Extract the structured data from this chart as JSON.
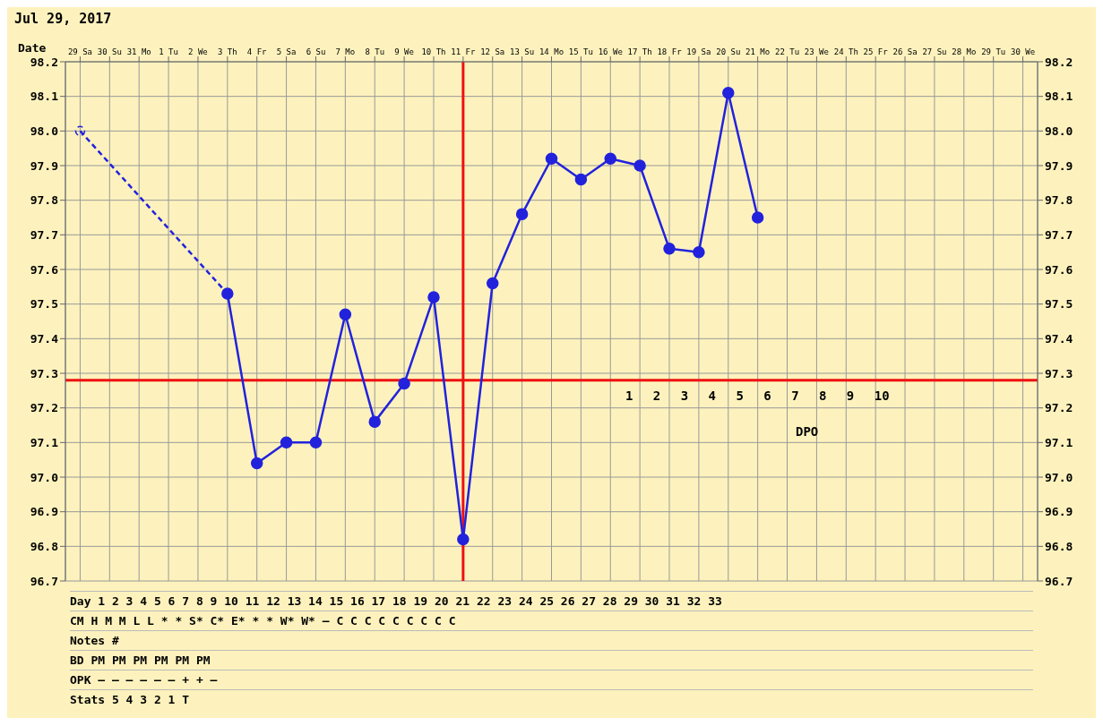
{
  "chart_data": {
    "type": "line",
    "title": "Jul 29, 2017",
    "xlabel": "Date",
    "categories": [
      "29 Sa",
      "30 Su",
      "31 Mo",
      "1 Tu",
      "2 We",
      "3 Th",
      "4 Fr",
      "5 Sa",
      "6 Su",
      "7 Mo",
      "8 Tu",
      "9 We",
      "10 Th",
      "11 Fr",
      "12 Sa",
      "13 Su",
      "14 Mo",
      "15 Tu",
      "16 We",
      "17 Th",
      "18 Fr",
      "19 Sa",
      "20 Su",
      "21 Mo",
      "22 Tu",
      "23 We",
      "24 Th",
      "25 Fr",
      "26 Sa",
      "27 Su",
      "28 Mo",
      "29 Tu",
      "30 We"
    ],
    "series": [
      {
        "color": "#2222dd",
        "line_style": "dashed",
        "marker": "circle",
        "values": [
          98.0,
          null,
          null,
          null,
          null,
          97.53,
          null,
          null,
          null,
          null,
          null,
          null,
          null,
          null,
          null,
          null,
          null,
          null,
          null,
          null,
          null,
          null,
          null,
          null,
          null,
          null,
          null,
          null,
          null,
          null,
          null,
          null,
          null
        ]
      },
      {
        "color": "#2222dd",
        "line_style": "solid",
        "marker": "circle",
        "values": [
          null,
          null,
          null,
          null,
          null,
          97.53,
          97.04,
          97.1,
          97.1,
          97.47,
          97.16,
          97.27,
          97.52,
          96.82,
          97.56,
          97.76,
          97.92,
          97.86,
          97.92,
          97.9,
          97.66,
          97.65,
          98.11,
          97.75,
          null,
          null,
          null,
          null,
          null,
          null,
          null,
          null,
          null
        ]
      }
    ],
    "ylim": [
      96.7,
      98.2
    ],
    "yticks": [
      {
        "value": 96.7,
        "label": "96.7"
      },
      {
        "value": 96.8,
        "label": "96.8"
      },
      {
        "value": 96.9,
        "label": "96.9"
      },
      {
        "value": 97.0,
        "label": "97.0"
      },
      {
        "value": 97.1,
        "label": "97.1"
      },
      {
        "value": 97.2,
        "label": "97.2"
      },
      {
        "value": 97.3,
        "label": "97.3"
      },
      {
        "value": 97.4,
        "label": "97.4"
      },
      {
        "value": 97.5,
        "label": "97.5"
      },
      {
        "value": 97.6,
        "label": "97.6"
      },
      {
        "value": 97.7,
        "label": "97.7"
      },
      {
        "value": 97.8,
        "label": "97.8"
      },
      {
        "value": 97.9,
        "label": "97.9"
      },
      {
        "value": 98.0,
        "label": "98.0"
      },
      {
        "value": 98.1,
        "label": "98.1"
      },
      {
        "value": 98.2,
        "label": "98.2"
      }
    ],
    "y2lim": [
      96.7,
      98.2
    ],
    "y2ticks": [
      {
        "value": 96.7,
        "label": "96.7"
      },
      {
        "value": 96.8,
        "label": "96.8"
      },
      {
        "value": 96.9,
        "label": "96.9"
      },
      {
        "value": 97.0,
        "label": "97.0"
      },
      {
        "value": 97.1,
        "label": "97.1"
      },
      {
        "value": 97.2,
        "label": "97.2"
      },
      {
        "value": 97.3,
        "label": "97.3"
      },
      {
        "value": 97.4,
        "label": "97.4"
      },
      {
        "value": 97.5,
        "label": "97.5"
      },
      {
        "value": 97.6,
        "label": "97.6"
      },
      {
        "value": 97.7,
        "label": "97.7"
      },
      {
        "value": 97.8,
        "label": "97.8"
      },
      {
        "value": 97.9,
        "label": "97.9"
      },
      {
        "value": 98.0,
        "label": "98.0"
      },
      {
        "value": 98.1,
        "label": "98.1"
      },
      {
        "value": 98.2,
        "label": "98.2"
      }
    ],
    "grid": true,
    "ref_lines": [
      {
        "axis": "y",
        "value": 97.28,
        "color": "#ee1111"
      },
      {
        "axis": "x",
        "value": "11 Fr",
        "color": "#ee1111"
      }
    ],
    "annotations": [
      "1 2 3 4 5 6 7 8 9 10",
      "DPO",
      "Day 1 2 3 4 5 6 7 8 9 10 11 12 13 14 15 16 17 18 19 20 21 22 23 24 25 26 27 28 29 30 31 32 33",
      "CM H M M L L * * S* C* E* * * W* W* – C C C C C C C C C",
      "Notes #",
      "BD PM PM PM PM PM PM",
      "OPK – – – – – – + + –",
      "Stats 5 4 3 2 1 T"
    ]
  }
}
